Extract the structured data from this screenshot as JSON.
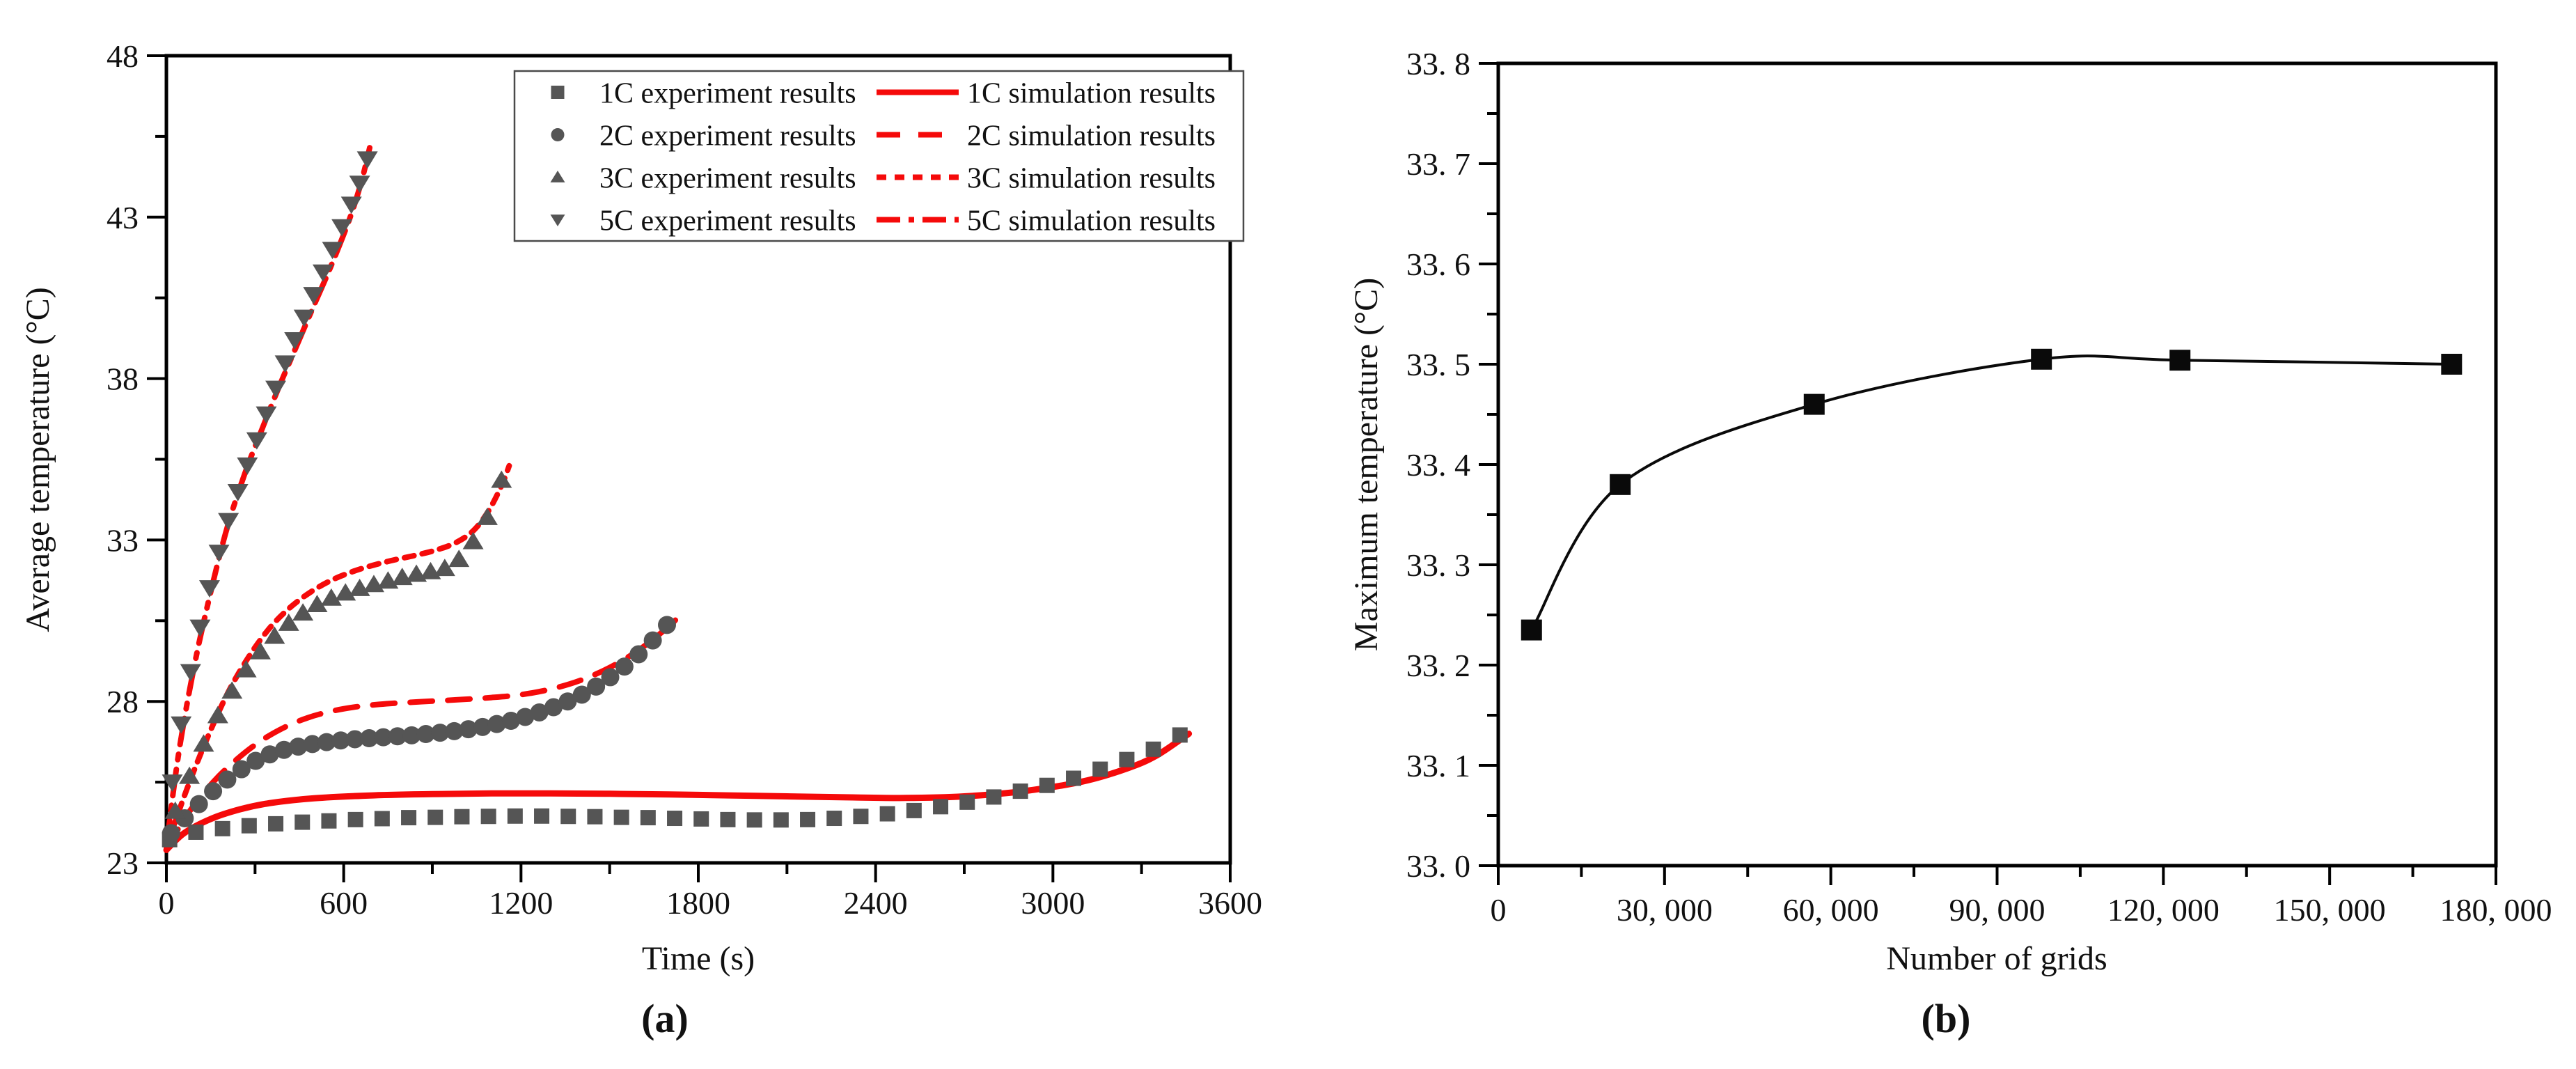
{
  "figure": {
    "background": "#ffffff",
    "colors": {
      "simulation_red": "#f50a0a",
      "experiment_gray": "#555555",
      "axis_black": "#000000",
      "b_series_black": "#0a0a0a",
      "legend_border": "#4a4a4a"
    }
  },
  "chart_data": [
    {
      "type": "line",
      "caption": "(a)",
      "xlabel": "Time (s)",
      "ylabel": "Average temperature (°C)",
      "xlim": [
        0,
        3600
      ],
      "ylim": [
        23,
        48
      ],
      "grid": false,
      "x_ticks": [
        0,
        600,
        1200,
        1800,
        2400,
        3000,
        3600
      ],
      "x_tick_labels": [
        "0",
        "600",
        "1200",
        "1800",
        "2400",
        "3000",
        "3600"
      ],
      "x_minor_ticks": [
        300,
        900,
        1500,
        2100,
        2700,
        3300
      ],
      "y_ticks": [
        23,
        28,
        33,
        38,
        43,
        48
      ],
      "y_tick_labels": [
        "23",
        "28",
        "33",
        "38",
        "43",
        "48"
      ],
      "y_minor_ticks": [
        25.5,
        30.5,
        35.5,
        40.5,
        45.5
      ],
      "legend": {
        "position": "top-right",
        "rows": [
          {
            "marker": "square",
            "exp_label": "1C experiment results",
            "line": "solid",
            "sim_label": "1C simulation results"
          },
          {
            "marker": "circle",
            "exp_label": "2C experiment results",
            "line": "dashed",
            "sim_label": "2C simulation results"
          },
          {
            "marker": "triangle-up",
            "exp_label": "3C experiment results",
            "line": "short-dash",
            "sim_label": "3C simulation results"
          },
          {
            "marker": "triangle-down",
            "exp_label": "5C experiment results",
            "line": "dash-dot",
            "sim_label": "5C simulation results"
          }
        ]
      },
      "series": [
        {
          "name": "1C simulation results",
          "kind": "line",
          "color": "#f50a0a",
          "width": 9,
          "dash": "",
          "points": [
            [
              0,
              23.4
            ],
            [
              60,
              23.92
            ],
            [
              150,
              24.36
            ],
            [
              250,
              24.66
            ],
            [
              350,
              24.85
            ],
            [
              500,
              25.0
            ],
            [
              700,
              25.09
            ],
            [
              900,
              25.13
            ],
            [
              1100,
              25.15
            ],
            [
              1300,
              25.15
            ],
            [
              1500,
              25.14
            ],
            [
              1700,
              25.12
            ],
            [
              1900,
              25.09
            ],
            [
              2100,
              25.06
            ],
            [
              2300,
              25.03
            ],
            [
              2500,
              25.01
            ],
            [
              2700,
              25.06
            ],
            [
              2900,
              25.22
            ],
            [
              3100,
              25.52
            ],
            [
              3250,
              25.92
            ],
            [
              3350,
              26.32
            ],
            [
              3460,
              27.0
            ]
          ]
        },
        {
          "name": "2C simulation results",
          "kind": "line",
          "color": "#f50a0a",
          "width": 8,
          "dash": "32 22",
          "points": [
            [
              0,
              23.45
            ],
            [
              80,
              24.62
            ],
            [
              160,
              25.52
            ],
            [
              240,
              26.22
            ],
            [
              320,
              26.78
            ],
            [
              400,
              27.2
            ],
            [
              480,
              27.5
            ],
            [
              560,
              27.7
            ],
            [
              640,
              27.83
            ],
            [
              720,
              27.91
            ],
            [
              800,
              27.96
            ],
            [
              900,
              28.01
            ],
            [
              1000,
              28.06
            ],
            [
              1100,
              28.12
            ],
            [
              1200,
              28.21
            ],
            [
              1300,
              28.38
            ],
            [
              1400,
              28.65
            ],
            [
              1500,
              29.05
            ],
            [
              1600,
              29.6
            ],
            [
              1700,
              30.32
            ],
            [
              1728,
              30.58
            ]
          ]
        },
        {
          "name": "3C simulation results",
          "kind": "line",
          "color": "#f50a0a",
          "width": 8,
          "dash": "14 12",
          "points": [
            [
              0,
              23.5
            ],
            [
              70,
              25.3
            ],
            [
              140,
              26.9
            ],
            [
              210,
              28.3
            ],
            [
              280,
              29.4
            ],
            [
              350,
              30.28
            ],
            [
              420,
              30.92
            ],
            [
              490,
              31.4
            ],
            [
              560,
              31.76
            ],
            [
              630,
              32.02
            ],
            [
              700,
              32.22
            ],
            [
              770,
              32.38
            ],
            [
              840,
              32.52
            ],
            [
              910,
              32.68
            ],
            [
              980,
              32.92
            ],
            [
              1040,
              33.3
            ],
            [
              1090,
              33.9
            ],
            [
              1135,
              34.7
            ],
            [
              1160,
              35.3
            ]
          ]
        },
        {
          "name": "5C simulation results",
          "kind": "line",
          "color": "#f50a0a",
          "width": 8,
          "dash": "38 14 8 14",
          "points": [
            [
              0,
              23.5
            ],
            [
              40,
              26.3
            ],
            [
              90,
              28.9
            ],
            [
              140,
              31.0
            ],
            [
              200,
              33.2
            ],
            [
              260,
              34.92
            ],
            [
              320,
              36.35
            ],
            [
              380,
              37.72
            ],
            [
              440,
              39.0
            ],
            [
              500,
              40.28
            ],
            [
              560,
              41.55
            ],
            [
              620,
              42.95
            ],
            [
              660,
              44.1
            ],
            [
              688,
              45.15
            ]
          ]
        },
        {
          "name": "1C experiment results",
          "kind": "markers",
          "marker": "square",
          "size": 22,
          "color": "#555555",
          "points": [
            [
              11,
              23.72
            ],
            [
              100,
              23.95
            ],
            [
              190,
              24.06
            ],
            [
              280,
              24.15
            ],
            [
              370,
              24.21
            ],
            [
              460,
              24.26
            ],
            [
              550,
              24.3
            ],
            [
              640,
              24.34
            ],
            [
              730,
              24.37
            ],
            [
              820,
              24.4
            ],
            [
              910,
              24.41
            ],
            [
              1000,
              24.43
            ],
            [
              1090,
              24.44
            ],
            [
              1180,
              24.45
            ],
            [
              1270,
              24.45
            ],
            [
              1360,
              24.44
            ],
            [
              1450,
              24.43
            ],
            [
              1540,
              24.41
            ],
            [
              1630,
              24.4
            ],
            [
              1720,
              24.38
            ],
            [
              1810,
              24.36
            ],
            [
              1900,
              24.34
            ],
            [
              1990,
              24.33
            ],
            [
              2080,
              24.33
            ],
            [
              2170,
              24.34
            ],
            [
              2260,
              24.38
            ],
            [
              2350,
              24.44
            ],
            [
              2440,
              24.52
            ],
            [
              2530,
              24.62
            ],
            [
              2620,
              24.74
            ],
            [
              2710,
              24.88
            ],
            [
              2800,
              25.04
            ],
            [
              2890,
              25.22
            ],
            [
              2980,
              25.4
            ],
            [
              3070,
              25.62
            ],
            [
              3160,
              25.9
            ],
            [
              3250,
              26.2
            ],
            [
              3340,
              26.52
            ],
            [
              3430,
              26.96
            ]
          ]
        },
        {
          "name": "2C experiment results",
          "kind": "markers",
          "marker": "circle",
          "size": 26,
          "color": "#555555",
          "points": [
            [
              16,
              23.92
            ],
            [
              62,
              24.38
            ],
            [
              110,
              24.82
            ],
            [
              158,
              25.22
            ],
            [
              206,
              25.58
            ],
            [
              254,
              25.9
            ],
            [
              302,
              26.16
            ],
            [
              350,
              26.36
            ],
            [
              398,
              26.5
            ],
            [
              446,
              26.6
            ],
            [
              494,
              26.68
            ],
            [
              542,
              26.74
            ],
            [
              590,
              26.79
            ],
            [
              638,
              26.83
            ],
            [
              686,
              26.86
            ],
            [
              734,
              26.89
            ],
            [
              782,
              26.92
            ],
            [
              830,
              26.95
            ],
            [
              878,
              26.99
            ],
            [
              926,
              27.03
            ],
            [
              974,
              27.08
            ],
            [
              1022,
              27.14
            ],
            [
              1070,
              27.21
            ],
            [
              1118,
              27.3
            ],
            [
              1166,
              27.4
            ],
            [
              1214,
              27.52
            ],
            [
              1262,
              27.66
            ],
            [
              1310,
              27.82
            ],
            [
              1358,
              28.0
            ],
            [
              1406,
              28.21
            ],
            [
              1454,
              28.46
            ],
            [
              1502,
              28.75
            ],
            [
              1550,
              29.08
            ],
            [
              1598,
              29.46
            ],
            [
              1646,
              29.89
            ],
            [
              1694,
              30.37
            ]
          ]
        },
        {
          "name": "3C experiment results",
          "kind": "markers",
          "marker": "triangle-up",
          "size": 28,
          "color": "#555555",
          "points": [
            [
              30,
              24.6
            ],
            [
              78,
              25.68
            ],
            [
              126,
              26.68
            ],
            [
              174,
              27.56
            ],
            [
              222,
              28.32
            ],
            [
              270,
              28.98
            ],
            [
              318,
              29.54
            ],
            [
              366,
              30.02
            ],
            [
              414,
              30.42
            ],
            [
              462,
              30.74
            ],
            [
              510,
              31.0
            ],
            [
              558,
              31.2
            ],
            [
              606,
              31.36
            ],
            [
              654,
              31.5
            ],
            [
              702,
              31.62
            ],
            [
              750,
              31.73
            ],
            [
              798,
              31.84
            ],
            [
              846,
              31.94
            ],
            [
              894,
              32.02
            ],
            [
              942,
              32.12
            ],
            [
              990,
              32.4
            ],
            [
              1038,
              32.95
            ],
            [
              1086,
              33.7
            ],
            [
              1134,
              34.85
            ]
          ]
        },
        {
          "name": "5C experiment results",
          "kind": "markers",
          "marker": "triangle-down",
          "size": 28,
          "color": "#555555",
          "points": [
            [
              20,
              25.5
            ],
            [
              50,
              27.3
            ],
            [
              82,
              28.92
            ],
            [
              114,
              30.3
            ],
            [
              146,
              31.52
            ],
            [
              178,
              32.62
            ],
            [
              210,
              33.6
            ],
            [
              242,
              34.5
            ],
            [
              274,
              35.32
            ],
            [
              306,
              36.1
            ],
            [
              338,
              36.9
            ],
            [
              370,
              37.7
            ],
            [
              402,
              38.48
            ],
            [
              434,
              39.2
            ],
            [
              466,
              39.9
            ],
            [
              498,
              40.6
            ],
            [
              530,
              41.3
            ],
            [
              562,
              42.0
            ],
            [
              594,
              42.7
            ],
            [
              626,
              43.4
            ],
            [
              654,
              44.05
            ],
            [
              680,
              44.8
            ]
          ]
        }
      ]
    },
    {
      "type": "line",
      "caption": "(b)",
      "xlabel": "Number of grids",
      "ylabel": "Maximum temperature (°C)",
      "xlim": [
        0,
        180000
      ],
      "ylim": [
        33.0,
        33.8
      ],
      "grid": false,
      "x_ticks": [
        0,
        30000,
        60000,
        90000,
        120000,
        150000,
        180000
      ],
      "x_tick_labels": [
        "0",
        "30, 000",
        "60, 000",
        "90, 000",
        "120, 000",
        "150, 000",
        "180, 000"
      ],
      "x_minor_ticks": [
        15000,
        45000,
        75000,
        105000,
        135000,
        165000
      ],
      "y_ticks": [
        33.0,
        33.1,
        33.2,
        33.3,
        33.4,
        33.5,
        33.6,
        33.7,
        33.8
      ],
      "y_tick_labels": [
        "33. 0",
        "33. 1",
        "33. 2",
        "33. 3",
        "33. 4",
        "33. 5",
        "33. 6",
        "33. 7",
        "33. 8"
      ],
      "y_minor_ticks": [
        33.05,
        33.15,
        33.25,
        33.35,
        33.45,
        33.55,
        33.65,
        33.75
      ],
      "series": [
        {
          "name": "Maximum temperature vs number of grids",
          "kind": "line+markers",
          "marker": "square",
          "size": 30,
          "color": "#0a0a0a",
          "width": 4,
          "dash": "",
          "points": [
            [
              6000,
              33.235
            ],
            [
              22000,
              33.38
            ],
            [
              57000,
              33.46
            ],
            [
              98000,
              33.505
            ],
            [
              123000,
              33.504
            ],
            [
              172000,
              33.5
            ]
          ]
        }
      ]
    }
  ]
}
